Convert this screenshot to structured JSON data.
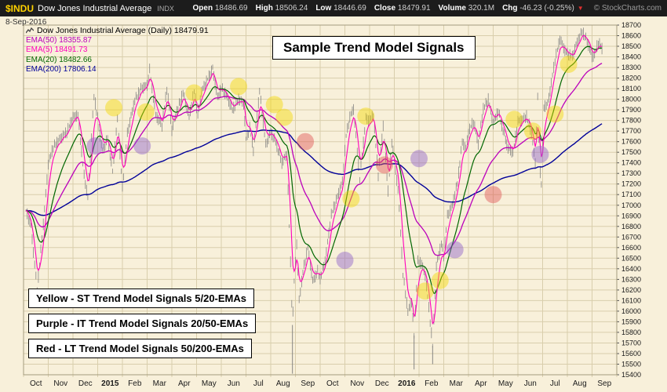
{
  "header": {
    "symbol": "$INDU",
    "name": "Dow Jones Industrial Average",
    "exchange": "INDX",
    "date": "8-Sep-2016",
    "copyright": "© StockCharts.com",
    "stats": [
      {
        "label": "Open",
        "value": "18486.69"
      },
      {
        "label": "High",
        "value": "18506.24"
      },
      {
        "label": "Low",
        "value": "18446.69"
      },
      {
        "label": "Close",
        "value": "18479.91"
      },
      {
        "label": "Volume",
        "value": "320.1M"
      },
      {
        "label": "Chg",
        "value": "-46.23 (-0.25%)"
      }
    ],
    "change_direction": "down",
    "down_arrow": "▼"
  },
  "legend": {
    "main": "Dow Jones Industrial Average (Daily) 18479.91",
    "emas": [
      {
        "label": "EMA(50) 18355.87",
        "color": "#BB00BB"
      },
      {
        "label": "EMA(5) 18491.73",
        "color": "#FF00BB"
      },
      {
        "label": "EMA(20) 18482.66",
        "color": "#006600"
      },
      {
        "label": "EMA(200) 17806.14",
        "color": "#000099"
      }
    ]
  },
  "title_box": "Sample Trend Model Signals",
  "signal_legend": [
    {
      "text": "Yellow - ST Trend Model Signals 5/20-EMAs"
    },
    {
      "text": "Purple - IT Trend Model Signals 20/50-EMAs"
    },
    {
      "text": "Red - LT Trend Model Signals 50/200-EMAs"
    }
  ],
  "chart_data": {
    "type": "line",
    "style": "daily OHLC bars with EMA overlays and trend-model signal dots",
    "title": "Sample Trend Model Signals",
    "ylim": [
      15400,
      18700
    ],
    "ystep": 100,
    "xlim": [
      0,
      24
    ],
    "grid": true,
    "legend_position": "top-left",
    "months": [
      "Oct",
      "Nov",
      "Dec",
      "2015",
      "Feb",
      "Mar",
      "Apr",
      "May",
      "Jun",
      "Jul",
      "Aug",
      "Sep",
      "Oct",
      "Nov",
      "Dec",
      "2016",
      "Feb",
      "Mar",
      "Apr",
      "May",
      "Jun",
      "Jul",
      "Aug",
      "Sep"
    ],
    "series_colors": {
      "price": "#7B7B7B",
      "ema5": "#FF00BB",
      "ema20": "#006600",
      "ema50": "#BB00BB",
      "ema200": "#000099"
    },
    "ema_periods": {
      "ema5": 5,
      "ema20": 20,
      "ema50": 50,
      "ema200": 200
    },
    "last_values": {
      "close": 18479.91,
      "ema5": 18491.73,
      "ema20": 18482.66,
      "ema50": 18355.87,
      "ema200": 17806.14
    },
    "price": [
      [
        0.1,
        16950
      ],
      [
        0.3,
        16800
      ],
      [
        0.55,
        16200
      ],
      [
        0.8,
        16820
      ],
      [
        1.0,
        17390
      ],
      [
        1.2,
        17550
      ],
      [
        1.5,
        17630
      ],
      [
        1.75,
        17690
      ],
      [
        2.0,
        17830
      ],
      [
        2.2,
        17850
      ],
      [
        2.45,
        17280
      ],
      [
        2.6,
        17070
      ],
      [
        2.85,
        18030
      ],
      [
        3.0,
        17820
      ],
      [
        3.2,
        17500
      ],
      [
        3.4,
        17640
      ],
      [
        3.6,
        17320
      ],
      [
        3.8,
        17810
      ],
      [
        4.0,
        17160
      ],
      [
        4.2,
        17680
      ],
      [
        4.5,
        17990
      ],
      [
        4.75,
        18100
      ],
      [
        5.0,
        18130
      ],
      [
        5.1,
        18280
      ],
      [
        5.35,
        17850
      ],
      [
        5.6,
        17750
      ],
      [
        5.8,
        18100
      ],
      [
        6.0,
        17710
      ],
      [
        6.2,
        17880
      ],
      [
        6.45,
        18060
      ],
      [
        6.7,
        17830
      ],
      [
        6.9,
        18080
      ],
      [
        7.05,
        17840
      ],
      [
        7.2,
        18070
      ],
      [
        7.45,
        18190
      ],
      [
        7.65,
        18290
      ],
      [
        7.85,
        18010
      ],
      [
        8.0,
        18110
      ],
      [
        8.2,
        18040
      ],
      [
        8.45,
        17900
      ],
      [
        8.7,
        18000
      ],
      [
        8.9,
        17960
      ],
      [
        9.0,
        17620
      ],
      [
        9.15,
        17730
      ],
      [
        9.3,
        17520
      ],
      [
        9.55,
        18080
      ],
      [
        9.8,
        17570
      ],
      [
        10.0,
        17690
      ],
      [
        10.2,
        17600
      ],
      [
        10.45,
        17400
      ],
      [
        10.65,
        17480
      ],
      [
        10.8,
        16460
      ],
      [
        10.88,
        15870,
        15410
      ],
      [
        10.95,
        16280
      ],
      [
        11.05,
        16640
      ],
      [
        11.15,
        16100
      ],
      [
        11.3,
        16370
      ],
      [
        11.5,
        16600
      ],
      [
        11.7,
        16280
      ],
      [
        11.9,
        16380
      ],
      [
        12.0,
        16310
      ],
      [
        12.2,
        16470
      ],
      [
        12.45,
        16910
      ],
      [
        12.7,
        17080
      ],
      [
        12.9,
        17220
      ],
      [
        13.05,
        17660
      ],
      [
        13.2,
        17830
      ],
      [
        13.35,
        17910
      ],
      [
        13.6,
        17250
      ],
      [
        13.85,
        17820
      ],
      [
        14.0,
        17800
      ],
      [
        14.15,
        17850
      ],
      [
        14.35,
        17280
      ],
      [
        14.55,
        17750
      ],
      [
        14.75,
        17130
      ],
      [
        14.9,
        17600
      ],
      [
        15.0,
        17420
      ],
      [
        15.15,
        17150
      ],
      [
        15.35,
        16350
      ],
      [
        15.55,
        15990
      ],
      [
        15.7,
        16090
      ],
      [
        15.8,
        15770,
        15450
      ],
      [
        15.95,
        16470
      ],
      [
        16.1,
        16450
      ],
      [
        16.25,
        16340
      ],
      [
        16.4,
        16030
      ],
      [
        16.55,
        15670,
        15500
      ],
      [
        16.7,
        16420
      ],
      [
        16.9,
        16640
      ],
      [
        17.0,
        16520
      ],
      [
        17.15,
        16900
      ],
      [
        17.35,
        17000
      ],
      [
        17.55,
        17210
      ],
      [
        17.75,
        17600
      ],
      [
        17.9,
        17530
      ],
      [
        18.0,
        17690
      ],
      [
        18.2,
        17790
      ],
      [
        18.4,
        17580
      ],
      [
        18.6,
        17910
      ],
      [
        18.8,
        18000
      ],
      [
        19.0,
        17770
      ],
      [
        19.2,
        17890
      ],
      [
        19.4,
        17710
      ],
      [
        19.6,
        17530
      ],
      [
        19.8,
        17500
      ],
      [
        20.0,
        17790
      ],
      [
        20.15,
        17800
      ],
      [
        20.35,
        17840
      ],
      [
        20.55,
        17680
      ],
      [
        20.7,
        17400
      ],
      [
        20.8,
        18010
      ],
      [
        20.88,
        17400
      ],
      [
        20.94,
        17140
      ],
      [
        21.05,
        17930
      ],
      [
        21.2,
        17950
      ],
      [
        21.35,
        18150
      ],
      [
        21.5,
        18370
      ],
      [
        21.7,
        18570
      ],
      [
        21.9,
        18460
      ],
      [
        22.0,
        18430
      ],
      [
        22.2,
        18400
      ],
      [
        22.4,
        18540
      ],
      [
        22.6,
        18640
      ],
      [
        22.8,
        18550
      ],
      [
        23.0,
        18400
      ],
      [
        23.1,
        18420
      ],
      [
        23.25,
        18540
      ],
      [
        23.4,
        18480
      ]
    ],
    "signal_colors": {
      "yellow": "#F5D800",
      "purple": "#8E5FC8",
      "red": "#E05555"
    },
    "signals": [
      {
        "x": 2.9,
        "y": 17560,
        "type": "purple"
      },
      {
        "x": 3.65,
        "y": 17920,
        "type": "yellow"
      },
      {
        "x": 4.8,
        "y": 17560,
        "type": "purple"
      },
      {
        "x": 4.95,
        "y": 17880,
        "type": "yellow"
      },
      {
        "x": 6.9,
        "y": 18060,
        "type": "yellow"
      },
      {
        "x": 8.7,
        "y": 18120,
        "type": "yellow"
      },
      {
        "x": 10.15,
        "y": 17950,
        "type": "yellow"
      },
      {
        "x": 10.55,
        "y": 17830,
        "type": "yellow"
      },
      {
        "x": 11.4,
        "y": 17600,
        "type": "red"
      },
      {
        "x": 13.0,
        "y": 16480,
        "type": "purple"
      },
      {
        "x": 13.25,
        "y": 17060,
        "type": "yellow"
      },
      {
        "x": 13.85,
        "y": 17840,
        "type": "yellow"
      },
      {
        "x": 14.6,
        "y": 17380,
        "type": "red"
      },
      {
        "x": 16.0,
        "y": 17440,
        "type": "purple"
      },
      {
        "x": 16.25,
        "y": 16190,
        "type": "yellow"
      },
      {
        "x": 16.85,
        "y": 16290,
        "type": "yellow"
      },
      {
        "x": 17.45,
        "y": 16580,
        "type": "purple"
      },
      {
        "x": 19.0,
        "y": 17100,
        "type": "red"
      },
      {
        "x": 19.85,
        "y": 17810,
        "type": "yellow"
      },
      {
        "x": 20.6,
        "y": 17700,
        "type": "yellow"
      },
      {
        "x": 20.9,
        "y": 17480,
        "type": "purple"
      },
      {
        "x": 21.5,
        "y": 17860,
        "type": "yellow"
      },
      {
        "x": 22.05,
        "y": 18330,
        "type": "yellow"
      }
    ]
  }
}
